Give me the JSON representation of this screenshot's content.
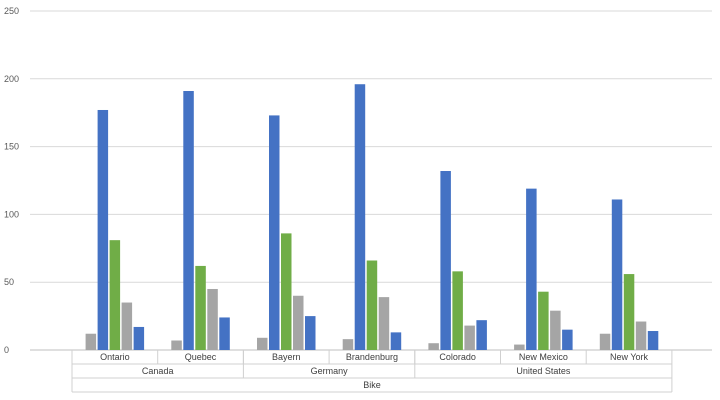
{
  "chart_data": {
    "type": "bar",
    "title": "",
    "xlabel": "",
    "ylabel": "",
    "ylim": [
      0,
      250
    ],
    "yticks": [
      0,
      50,
      100,
      150,
      200,
      250
    ],
    "grid": true,
    "legend": "none",
    "categories": [
      "Ontario",
      "Quebec",
      "Bayern",
      "Brandenburg",
      "Colorado",
      "New Mexico",
      "New York"
    ],
    "groups": [
      {
        "label": "Canada",
        "categories": [
          "Ontario",
          "Quebec"
        ]
      },
      {
        "label": "Germany",
        "categories": [
          "Bayern",
          "Brandenburg"
        ]
      },
      {
        "label": "United States",
        "categories": [
          "Colorado",
          "New Mexico",
          "New York"
        ]
      }
    ],
    "top_group": "Bike",
    "series": [
      {
        "color": "#a5a5a5",
        "values": [
          12,
          7,
          9,
          8,
          5,
          4,
          12
        ]
      },
      {
        "color": "#4472c4",
        "values": [
          177,
          191,
          173,
          196,
          132,
          119,
          111
        ]
      },
      {
        "color": "#70ad47",
        "values": [
          81,
          62,
          86,
          66,
          58,
          43,
          56
        ]
      },
      {
        "color": "#a5a5a5",
        "values": [
          35,
          45,
          40,
          39,
          18,
          29,
          21
        ]
      },
      {
        "color": "#4472c4",
        "values": [
          17,
          24,
          25,
          13,
          22,
          15,
          14
        ]
      }
    ]
  }
}
